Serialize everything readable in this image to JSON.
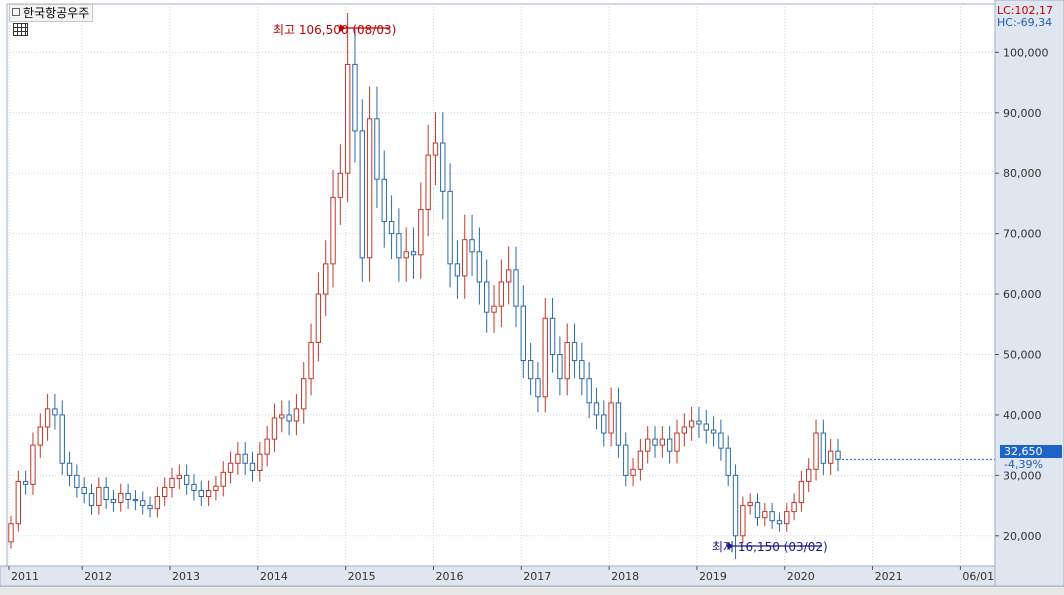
{
  "title": "한국항공우주",
  "lc_label": "LC:102,17",
  "hc_label": "HC:-69,34",
  "last_price_label": "32,650",
  "last_change_label": "-4,39%",
  "annotation_high": "최고 106,500 (08/03)",
  "annotation_low": "최저 16,150 (03/02)",
  "colors": {
    "up": "#c0392b",
    "down": "#2a6aa8",
    "grid": "#cfd8e4",
    "axis_bg": "#dfe6ef"
  },
  "chart_data": {
    "type": "candlestick",
    "interval": "monthly",
    "ylim": [
      15000,
      108000
    ],
    "y_ticks": [
      20000,
      30000,
      40000,
      50000,
      60000,
      70000,
      80000,
      90000,
      100000
    ],
    "y_tick_labels": [
      "20,000",
      "30,000",
      "40,000",
      "50,000",
      "60,000",
      "70,000",
      "80,000",
      "90,000",
      "100,000"
    ],
    "x_tick_labels": [
      "2011",
      "2012",
      "2013",
      "2014",
      "2015",
      "2016",
      "2017",
      "2018",
      "2019",
      "2020",
      "2021",
      "06/01"
    ],
    "x_tick_index": [
      0,
      10,
      22,
      34,
      46,
      58,
      70,
      82,
      94,
      106,
      118,
      130
    ],
    "high": {
      "value": 106500,
      "date": "08/03"
    },
    "low": {
      "value": 16150,
      "date": "03/02"
    },
    "last_close": 32650,
    "closes": [
      22000,
      29000,
      28500,
      35000,
      38000,
      41000,
      40000,
      32000,
      30000,
      28000,
      27000,
      25000,
      28000,
      26000,
      25500,
      27000,
      26000,
      25800,
      25000,
      24500,
      26500,
      28000,
      29500,
      30000,
      28500,
      27500,
      26500,
      27500,
      28200,
      30500,
      32000,
      33500,
      32000,
      30800,
      33500,
      36000,
      39500,
      40000,
      39000,
      41000,
      46000,
      52000,
      60000,
      65000,
      76000,
      80000,
      98000,
      87000,
      66000,
      89000,
      79000,
      72000,
      70000,
      66000,
      67000,
      66500,
      74000,
      83000,
      85000,
      77000,
      65000,
      63000,
      69000,
      67000,
      62000,
      57000,
      58000,
      62000,
      64000,
      58000,
      49000,
      46000,
      43000,
      56000,
      50000,
      46000,
      52000,
      49000,
      46000,
      42000,
      40000,
      37000,
      42000,
      35000,
      30000,
      31000,
      34000,
      36000,
      35000,
      36000,
      34000,
      37000,
      38000,
      39000,
      38500,
      37500,
      37000,
      34500,
      30000,
      20000,
      25000,
      25500,
      23000,
      24000,
      22500,
      22000,
      24000,
      25500,
      29000,
      31000,
      37000,
      32000,
      34000,
      32650
    ]
  }
}
